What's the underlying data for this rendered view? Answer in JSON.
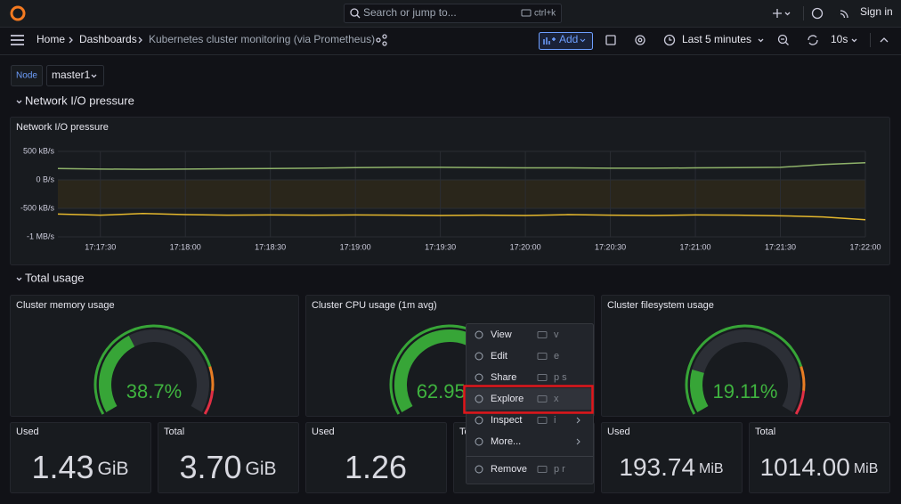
{
  "topbar": {
    "search": "Search or jump to...",
    "shortcut": "ctrl+k",
    "sign_in": "Sign in"
  },
  "breadcrumbs": [
    "Home",
    "Dashboards",
    "Kubernetes cluster monitoring (via Prometheus)"
  ],
  "toolbar": {
    "add": "Add",
    "time_range": "Last 5 minutes",
    "refresh": "10s"
  },
  "variables": [
    {
      "label": "Node",
      "value": "master1"
    }
  ],
  "rows": [
    "Network I/O pressure",
    "Total usage"
  ],
  "network_panel": {
    "type": "line",
    "title": "Network I/O pressure",
    "x": [
      62235,
      62250,
      62265,
      62280,
      62295,
      62310,
      62325,
      62340,
      62355,
      62370,
      62385,
      62400,
      62415,
      62430,
      62445,
      62460,
      62475,
      62490,
      62505,
      62520
    ],
    "xlim": [
      62235,
      62520
    ],
    "xticks": [
      {
        "value": 62250,
        "label": "17:17:30"
      },
      {
        "value": 62280,
        "label": "17:18:00"
      },
      {
        "value": 62310,
        "label": "17:18:30"
      },
      {
        "value": 62340,
        "label": "17:19:00"
      },
      {
        "value": 62370,
        "label": "17:19:30"
      },
      {
        "value": 62400,
        "label": "17:20:00"
      },
      {
        "value": 62430,
        "label": "17:20:30"
      },
      {
        "value": 62460,
        "label": "17:21:00"
      },
      {
        "value": 62490,
        "label": "17:21:30"
      },
      {
        "value": 62520,
        "label": "17:22:00"
      }
    ],
    "ylim": [
      -1000,
      500
    ],
    "yticks": [
      {
        "value": 500,
        "label": "500 kB/s"
      },
      {
        "value": 0,
        "label": "0 B/s"
      },
      {
        "value": -500,
        "label": "-500 kB/s"
      },
      {
        "value": -1000,
        "label": "-1 MB/s"
      }
    ],
    "grid": true,
    "series": [
      {
        "color": "#8fb36a",
        "values": [
          200,
          190,
          185,
          190,
          195,
          200,
          205,
          215,
          220,
          220,
          215,
          210,
          210,
          205,
          205,
          210,
          215,
          220,
          270,
          300
        ]
      },
      {
        "color": "#e5b82d",
        "values": [
          -600,
          -620,
          -590,
          -610,
          -620,
          -615,
          -620,
          -615,
          -620,
          -625,
          -620,
          -625,
          -610,
          -620,
          -625,
          -615,
          -620,
          -630,
          -650,
          -700
        ]
      }
    ]
  },
  "gauges": [
    {
      "title": "Cluster memory usage",
      "value": 38.7,
      "value_label": "38.7%"
    },
    {
      "title": "Cluster CPU usage (1m avg)",
      "value": 62.95,
      "value_label": "62.95%"
    },
    {
      "title": "Cluster filesystem usage",
      "value": 19.11,
      "value_label": "19.11%"
    }
  ],
  "gauge_scale": {
    "min": 0,
    "max": 100,
    "color": "#37a537",
    "thresholds": [
      {
        "value": 80,
        "color": "#e87d24"
      },
      {
        "value": 90,
        "color": "#e02f44"
      }
    ]
  },
  "stats": [
    {
      "title": "Used",
      "value": "1.43",
      "unit": "GiB"
    },
    {
      "title": "Total",
      "value": "3.70",
      "unit": "GiB"
    },
    {
      "title": "Used",
      "value": "1.26"
    },
    {
      "title": "Total"
    },
    {
      "title": "Used",
      "value": "193.74",
      "unit": "MiB"
    },
    {
      "title": "Total",
      "value": "1014.00",
      "unit": "MiB"
    }
  ],
  "menu": [
    {
      "label": "View",
      "shortcut": "v"
    },
    {
      "label": "Edit",
      "shortcut": "e"
    },
    {
      "label": "Share",
      "shortcut": "p s"
    },
    {
      "label": "Explore",
      "shortcut": "x"
    },
    {
      "label": "Inspect",
      "shortcut": "i"
    },
    {
      "label": "More..."
    },
    {
      "label": "Remove",
      "shortcut": "p r"
    }
  ]
}
